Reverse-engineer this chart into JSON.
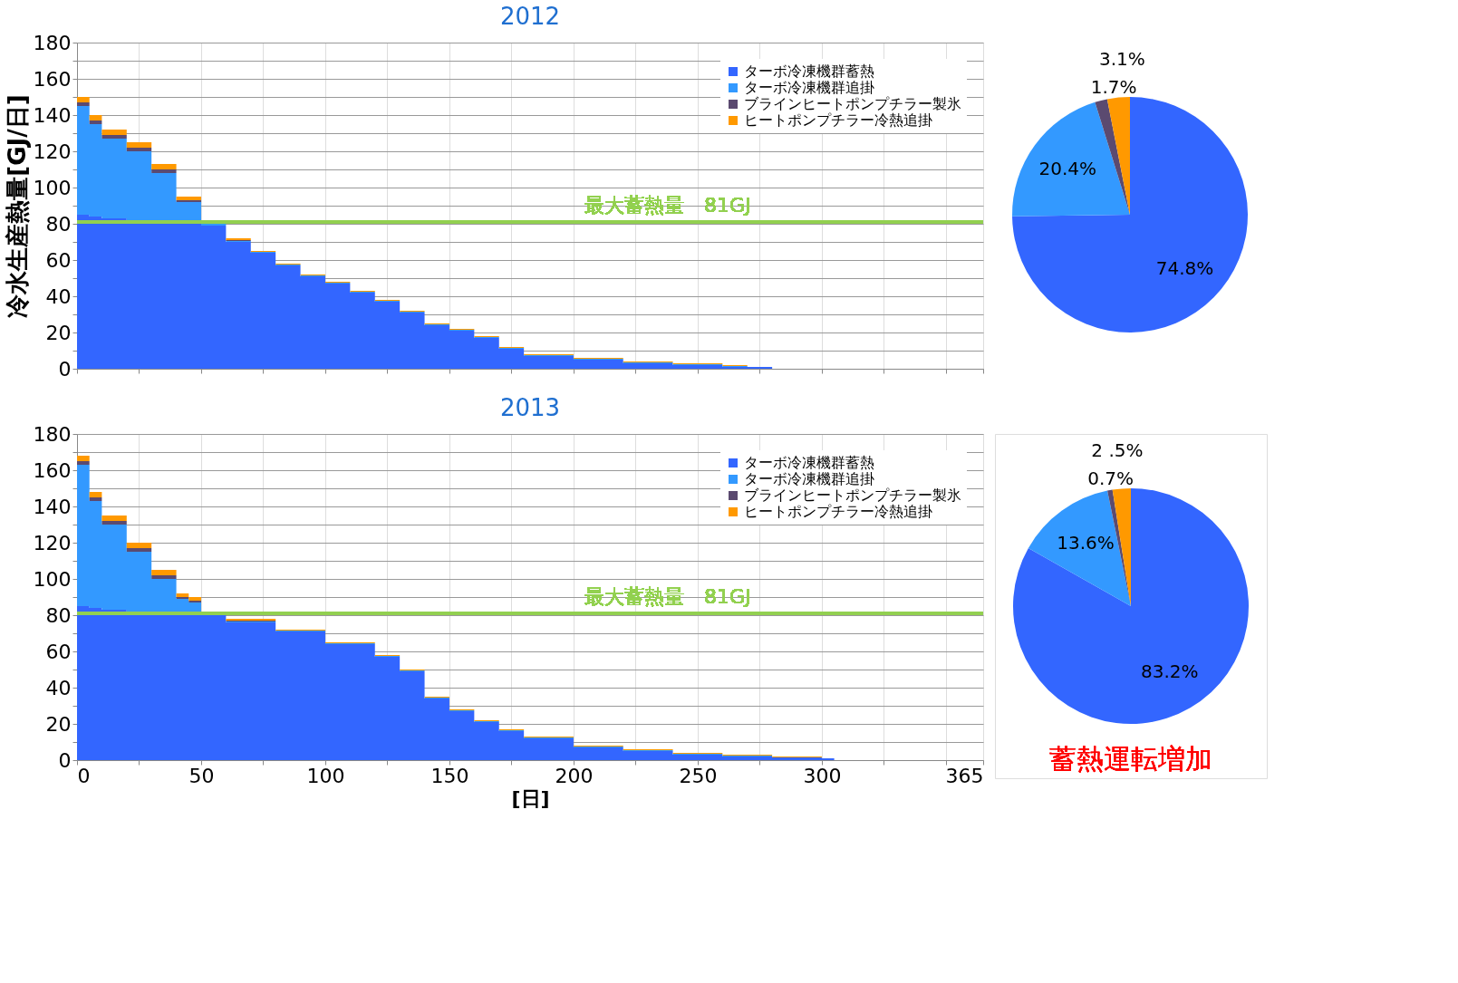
{
  "chart_data": [
    {
      "type": "area",
      "title": "2012",
      "ylabel": "冷水生産熱量[GJ/日]",
      "stacked": true,
      "legend": "top right",
      "grid": true,
      "tick_labels": "y",
      "x": [
        0,
        5,
        10,
        20,
        30,
        40,
        50,
        60,
        70,
        80,
        90,
        100,
        110,
        120,
        130,
        140,
        150,
        160,
        170,
        180,
        200,
        220,
        240,
        260,
        270,
        280
      ],
      "series": [
        {
          "name": "ターボ冷凍機群蓄熱",
          "color": "#3366ff",
          "values": [
            85,
            84,
            83,
            82,
            81,
            80,
            79,
            70,
            64,
            57,
            51,
            47,
            42,
            37,
            31,
            24,
            21,
            17,
            11,
            7,
            5,
            3,
            2,
            1,
            1,
            0
          ]
        },
        {
          "name": "ターボ冷凍機群追掛",
          "color": "#3399ff",
          "values": [
            60,
            51,
            44,
            38,
            27,
            12,
            1.5,
            0.5,
            0.5,
            0.5,
            0.5,
            0.5,
            0.5,
            0.5,
            0.5,
            0.5,
            0.5,
            0.5,
            0.5,
            0.5,
            0.5,
            0.5,
            0.5,
            0.5,
            0,
            0
          ]
        },
        {
          "name": "ブラインヒートポンプチラー製氷",
          "color": "#5b4a70",
          "values": [
            2,
            2,
            2,
            2,
            2,
            1,
            0.5,
            0.5,
            0,
            0,
            0,
            0,
            0,
            0,
            0,
            0,
            0,
            0,
            0,
            0,
            0,
            0,
            0,
            0,
            0,
            0
          ]
        },
        {
          "name": "ヒートポンプチラー冷熱追掛",
          "color": "#ff9900",
          "values": [
            3,
            3,
            3,
            3,
            3,
            2,
            1,
            1,
            0.5,
            0.5,
            0.5,
            0.5,
            0.5,
            0.5,
            0.5,
            0.5,
            0.5,
            0.5,
            0.5,
            0.5,
            0.5,
            0.5,
            0.5,
            0.5,
            0,
            0
          ]
        }
      ],
      "xlim": [
        0,
        365
      ],
      "ylim": [
        0,
        180
      ],
      "xticks": [
        0,
        {
          "value": 25,
          "label": null
        },
        50,
        {
          "value": 75,
          "label": null
        },
        100,
        {
          "value": 125,
          "label": null
        },
        150,
        {
          "value": 175,
          "label": null
        },
        200,
        {
          "value": 225,
          "label": null
        },
        250,
        {
          "value": 275,
          "label": null
        },
        300,
        {
          "value": 325,
          "label": null
        },
        {
          "value": 350,
          "label": null
        },
        365
      ],
      "yticks": [
        0,
        {
          "value": 10,
          "label": null
        },
        20,
        {
          "value": 30,
          "label": null
        },
        40,
        {
          "value": 50,
          "label": null
        },
        60,
        {
          "value": 70,
          "label": null
        },
        80,
        {
          "value": 90,
          "label": null
        },
        100,
        {
          "value": 110,
          "label": null
        },
        120,
        {
          "value": 130,
          "label": null
        },
        140,
        {
          "value": 150,
          "label": null
        },
        160,
        {
          "value": 170,
          "label": null
        },
        180
      ],
      "ref_lines": [
        {
          "axis": "y",
          "value": 81,
          "label": "最大蓄熱量　81GJ",
          "color": "#92d050"
        }
      ]
    },
    {
      "type": "pie",
      "categories": [
        null,
        null,
        null,
        null
      ],
      "values": [
        74.8,
        20.4,
        1.7,
        3.1
      ],
      "colors": [
        "#3366ff",
        "#3399ff",
        "#5b4a70",
        "#ff9900"
      ],
      "value_labels": [
        "74.8%",
        "20.4%",
        "1.7%",
        "3.1%"
      ]
    },
    {
      "type": "area",
      "title": "2013",
      "xlabel": "[日]",
      "stacked": true,
      "legend": "top right",
      "grid": true,
      "x": [
        0,
        5,
        10,
        20,
        30,
        40,
        45,
        50,
        60,
        80,
        100,
        120,
        130,
        140,
        150,
        160,
        170,
        180,
        200,
        220,
        240,
        260,
        280,
        300,
        305
      ],
      "series": [
        {
          "name": "ターボ冷凍機群蓄熱",
          "color": "#3366ff",
          "values": [
            85,
            84,
            83,
            82,
            82,
            82,
            82,
            80,
            76,
            71,
            64,
            57,
            49,
            34,
            27,
            21,
            16,
            12,
            7,
            5,
            3,
            2,
            1.5,
            1,
            0
          ]
        },
        {
          "name": "ターボ冷凍機群追掛",
          "color": "#3399ff",
          "values": [
            78,
            59,
            47,
            33,
            18,
            7,
            5,
            0,
            0.5,
            0.5,
            0.5,
            0.5,
            0.5,
            0.5,
            0.5,
            0.5,
            0.5,
            0.5,
            0.5,
            0.5,
            0.5,
            0.5,
            0,
            0,
            0
          ]
        },
        {
          "name": "ブラインヒートポンプチラー製氷",
          "color": "#5b4a70",
          "values": [
            2,
            2,
            2,
            2,
            2,
            1,
            1,
            1,
            0.5,
            0,
            0,
            0,
            0,
            0,
            0,
            0,
            0,
            0,
            0,
            0,
            0,
            0,
            0,
            0,
            0
          ]
        },
        {
          "name": "ヒートポンプチラー冷熱追掛",
          "color": "#ff9900",
          "values": [
            3,
            3,
            3,
            3,
            3,
            2,
            2,
            1,
            1,
            0.5,
            0.5,
            0.5,
            0.5,
            0.5,
            0.5,
            0.5,
            0.5,
            0.5,
            0.5,
            0.5,
            0.5,
            0.5,
            0.5,
            0,
            0
          ]
        }
      ],
      "xlim": [
        0,
        365
      ],
      "ylim": [
        0,
        180
      ],
      "xticks": [
        0,
        {
          "value": 25,
          "label": null
        },
        50,
        {
          "value": 75,
          "label": null
        },
        100,
        {
          "value": 125,
          "label": null
        },
        150,
        {
          "value": 175,
          "label": null
        },
        200,
        {
          "value": 225,
          "label": null
        },
        250,
        {
          "value": 275,
          "label": null
        },
        300,
        {
          "value": 325,
          "label": null
        },
        {
          "value": 350,
          "label": null
        },
        365
      ],
      "yticks": [
        0,
        {
          "value": 10,
          "label": null
        },
        20,
        {
          "value": 30,
          "label": null
        },
        40,
        {
          "value": 50,
          "label": null
        },
        60,
        {
          "value": 70,
          "label": null
        },
        80,
        {
          "value": 90,
          "label": null
        },
        100,
        {
          "value": 110,
          "label": null
        },
        120,
        {
          "value": 130,
          "label": null
        },
        140,
        {
          "value": 150,
          "label": null
        },
        160,
        {
          "value": 170,
          "label": null
        },
        180
      ],
      "ref_lines": [
        {
          "axis": "y",
          "value": 81,
          "label": "最大蓄熱量　81GJ",
          "color": "#92d050"
        }
      ]
    },
    {
      "type": "pie",
      "categories": [
        null,
        null,
        null,
        null
      ],
      "values": [
        83.2,
        13.6,
        0.7,
        2.5
      ],
      "colors": [
        "#3366ff",
        "#3399ff",
        "#5b4a70",
        "#ff9900"
      ],
      "value_labels": [
        "83.2%",
        "13.6%",
        "0.7%",
        "2 .5%"
      ],
      "annotations": [
        "蓄熱運転増加"
      ]
    }
  ]
}
